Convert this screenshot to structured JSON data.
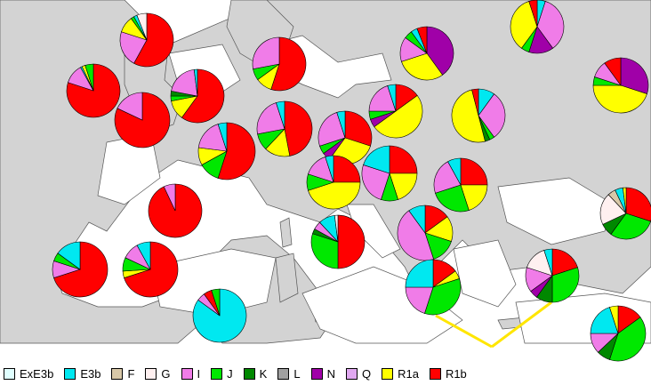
{
  "legend": [
    {
      "label": "ExE3b",
      "color": "#e0ffff"
    },
    {
      "label": "E3b",
      "color": "#00e8f0"
    },
    {
      "label": "F",
      "color": "#d8c8a8"
    },
    {
      "label": "G",
      "color": "#fff0f0"
    },
    {
      "label": "I",
      "color": "#f07ce8"
    },
    {
      "label": "J",
      "color": "#00e800"
    },
    {
      "label": "K",
      "color": "#008800"
    },
    {
      "label": "L",
      "color": "#a0a0a0"
    },
    {
      "label": "N",
      "color": "#a000a8"
    },
    {
      "label": "Q",
      "color": "#e0a8f0"
    },
    {
      "label": "R1a",
      "color": "#ffff00"
    },
    {
      "label": "R1b",
      "color": "#ff0000"
    }
  ],
  "colors": {
    "land": "#d3d3d3",
    "sea": "#ffffff",
    "border": "#555555",
    "highlight": "#ffe600"
  }
}
